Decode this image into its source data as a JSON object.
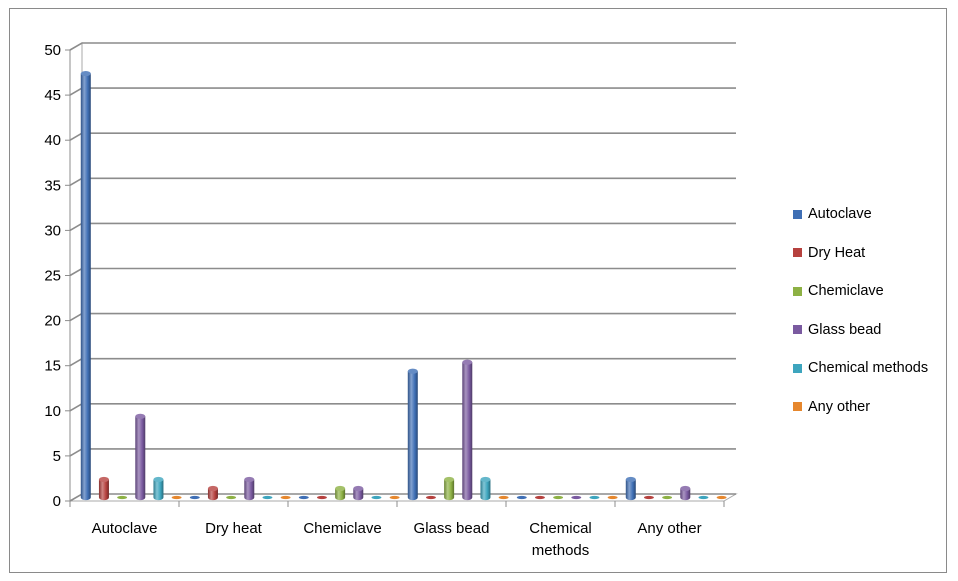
{
  "chart_data": {
    "type": "bar",
    "categories": [
      "Autoclave",
      "Dry heat",
      "Chemiclave",
      "Glass bead",
      "Chemical methods",
      "Any other"
    ],
    "category_label_lines": [
      [
        "Autoclave"
      ],
      [
        "Dry heat"
      ],
      [
        "Chemiclave"
      ],
      [
        "Glass bead"
      ],
      [
        "Chemical",
        "methods"
      ],
      [
        "Any other"
      ]
    ],
    "series": [
      {
        "name": "Autoclave",
        "color": "#3F6FB5",
        "values": [
          47,
          0,
          0,
          14,
          0,
          2
        ]
      },
      {
        "name": "Dry Heat",
        "color": "#B6413E",
        "values": [
          2,
          1,
          0,
          0,
          0,
          0
        ]
      },
      {
        "name": "Chemiclave",
        "color": "#8DB144",
        "values": [
          0,
          0,
          1,
          2,
          0,
          0
        ]
      },
      {
        "name": "Glass bead",
        "color": "#7A5AA0",
        "values": [
          9,
          2,
          1,
          15,
          0,
          1
        ]
      },
      {
        "name": "Chemical methods",
        "color": "#3DA5BE",
        "values": [
          2,
          0,
          0,
          2,
          0,
          0
        ]
      },
      {
        "name": "Any other",
        "color": "#E6872D",
        "values": [
          0,
          0,
          0,
          0,
          0,
          0
        ]
      }
    ],
    "ylim": [
      0,
      50
    ],
    "yticks": [
      0,
      5,
      10,
      15,
      20,
      25,
      30,
      35,
      40,
      45,
      50
    ],
    "grid": true,
    "legend_position": "right",
    "title": "",
    "xlabel": "",
    "ylabel": ""
  }
}
